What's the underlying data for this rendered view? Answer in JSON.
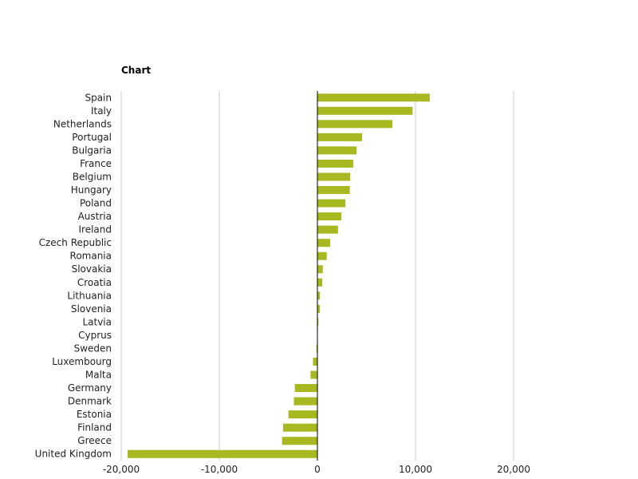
{
  "chart_title": "Chart",
  "chart_data": {
    "type": "bar",
    "orientation": "horizontal",
    "title": "Chart",
    "categories": [
      "Spain",
      "Italy",
      "Netherlands",
      "Portugal",
      "Bulgaria",
      "France",
      "Belgium",
      "Hungary",
      "Poland",
      "Austria",
      "Ireland",
      "Czech Republic",
      "Romania",
      "Slovakia",
      "Croatia",
      "Lithuania",
      "Slovenia",
      "Latvia",
      "Cyprus",
      "Sweden",
      "Luxembourg",
      "Malta",
      "Germany",
      "Denmark",
      "Estonia",
      "Finland",
      "Greece",
      "United Kingdom"
    ],
    "values": [
      11450,
      9700,
      7650,
      4550,
      4000,
      3650,
      3350,
      3300,
      2850,
      2450,
      2100,
      1300,
      950,
      550,
      500,
      250,
      250,
      100,
      0,
      -100,
      -450,
      -700,
      -2300,
      -2400,
      -2950,
      -3500,
      -3600,
      -19350
    ],
    "xlabel": "",
    "ylabel": "",
    "xlim": [
      -20000,
      20000
    ],
    "ticks": [
      "-20,000",
      "-10,000",
      "0",
      "10,000",
      "20,000"
    ],
    "tick_values": [
      -20000,
      -10000,
      0,
      10000,
      20000
    ],
    "grid": true,
    "bar_color": "#a8b820"
  }
}
